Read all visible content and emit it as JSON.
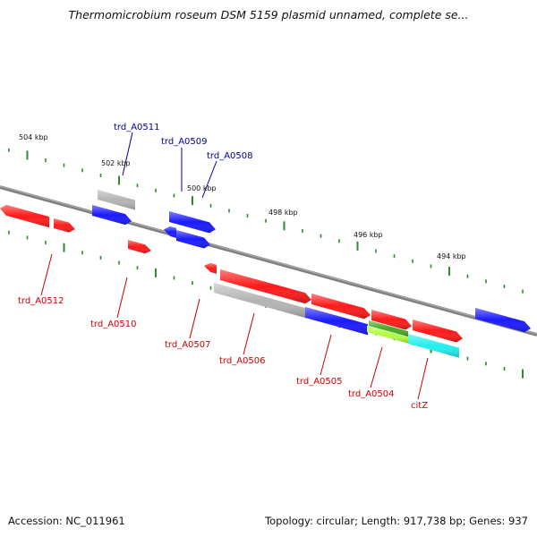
{
  "title": "Thermomicrobium roseum DSM 5159 plasmid unnamed, complete se...",
  "footer": {
    "accession": "Accession: NC_011961",
    "stats": "Topology: circular; Length: 917,738 bp; Genes: 937"
  },
  "colors": {
    "backbone": "#808080",
    "tick": "#2e8b2e",
    "forward_label": "#00008b",
    "reverse_label": "#cc0000"
  },
  "kbp_labels": [
    "504 kbp",
    "502 kbp",
    "500 kbp",
    "498 kbp",
    "496 kbp",
    "494 kbp"
  ],
  "genes": [
    {
      "id": "g1",
      "label": "",
      "color": "#ff1a1a"
    },
    {
      "id": "g2",
      "label": "",
      "color": "#ff1a1a"
    },
    {
      "id": "g3",
      "label": "",
      "color": "#ff1a1a"
    },
    {
      "id": "g4",
      "label": "",
      "color": "#b4b4b4"
    },
    {
      "id": "g5",
      "label": "",
      "color": "#1a1aff"
    },
    {
      "id": "g6",
      "label": "",
      "color": "#1a1aff"
    },
    {
      "id": "g7",
      "label": "",
      "color": "#1a1aff"
    },
    {
      "id": "g8",
      "label": "",
      "color": "#1a1aff"
    },
    {
      "id": "g9",
      "label": "",
      "color": "#ff1a1a"
    },
    {
      "id": "g10",
      "label": "",
      "color": "#ff1a1a"
    },
    {
      "id": "g11",
      "label": "",
      "color": "#b4b4b4"
    },
    {
      "id": "g12",
      "label": "",
      "color": "#ff1a1a"
    },
    {
      "id": "g13",
      "label": "",
      "color": "#1a1aff"
    },
    {
      "id": "g14",
      "label": "",
      "color": "#ff1a1a"
    },
    {
      "id": "g15",
      "label": "",
      "color": "#44aa22"
    },
    {
      "id": "g16",
      "label": "",
      "color": "#b0ff40"
    },
    {
      "id": "g17",
      "label": "",
      "color": "#ff1a1a"
    },
    {
      "id": "g18",
      "label": "",
      "color": "#22eeee"
    },
    {
      "id": "g19",
      "label": "",
      "color": "#1a1aff"
    }
  ],
  "labels": [
    {
      "text": "trd_A0511",
      "strand": "forward"
    },
    {
      "text": "trd_A0509",
      "strand": "forward"
    },
    {
      "text": "trd_A0508",
      "strand": "forward"
    },
    {
      "text": "trd_A0512",
      "strand": "reverse"
    },
    {
      "text": "trd_A0510",
      "strand": "reverse"
    },
    {
      "text": "trd_A0507",
      "strand": "reverse"
    },
    {
      "text": "trd_A0506",
      "strand": "reverse"
    },
    {
      "text": "trd_A0505",
      "strand": "reverse"
    },
    {
      "text": "trd_A0504",
      "strand": "reverse"
    },
    {
      "text": "citZ",
      "strand": "reverse"
    }
  ]
}
